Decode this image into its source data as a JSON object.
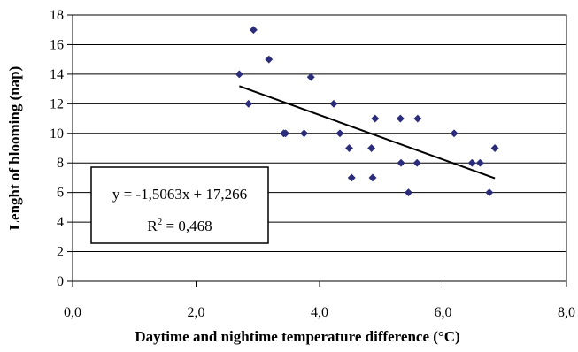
{
  "chart_data": {
    "type": "scatter",
    "xlabel": "Daytime and nightime temperature difference (°C)",
    "ylabel": "Lenght of blooming  (nap)",
    "xlim": [
      0,
      8
    ],
    "ylim": [
      0,
      18
    ],
    "x_ticks": [
      0,
      2,
      4,
      6,
      8
    ],
    "x_tick_labels": [
      "0,0",
      "2,0",
      "4,0",
      "6,0",
      "8,0"
    ],
    "y_ticks": [
      0,
      2,
      4,
      6,
      8,
      10,
      12,
      14,
      16,
      18
    ],
    "y_tick_labels": [
      "0",
      "2",
      "4",
      "6",
      "8",
      "10",
      "12",
      "14",
      "16",
      "18"
    ],
    "grid": "horizontal",
    "marker_color": "#2b2d7a",
    "points": [
      {
        "x": 2.7,
        "y": 14
      },
      {
        "x": 2.85,
        "y": 12
      },
      {
        "x": 2.93,
        "y": 17
      },
      {
        "x": 3.18,
        "y": 15
      },
      {
        "x": 3.42,
        "y": 10
      },
      {
        "x": 3.45,
        "y": 10
      },
      {
        "x": 3.75,
        "y": 10
      },
      {
        "x": 3.86,
        "y": 13.8
      },
      {
        "x": 4.23,
        "y": 12
      },
      {
        "x": 4.33,
        "y": 10
      },
      {
        "x": 4.48,
        "y": 9
      },
      {
        "x": 4.52,
        "y": 7
      },
      {
        "x": 4.84,
        "y": 9
      },
      {
        "x": 4.86,
        "y": 7
      },
      {
        "x": 4.9,
        "y": 11
      },
      {
        "x": 5.31,
        "y": 11
      },
      {
        "x": 5.32,
        "y": 8
      },
      {
        "x": 5.44,
        "y": 6
      },
      {
        "x": 5.59,
        "y": 11
      },
      {
        "x": 5.58,
        "y": 8
      },
      {
        "x": 6.18,
        "y": 10
      },
      {
        "x": 6.47,
        "y": 8
      },
      {
        "x": 6.6,
        "y": 8
      },
      {
        "x": 6.75,
        "y": 6
      },
      {
        "x": 6.84,
        "y": 9
      }
    ],
    "trendline": {
      "slope": -1.5063,
      "intercept": 17.266,
      "x_range": [
        2.7,
        6.84
      ],
      "equation_text": "y = -1,5063x + 17,266",
      "r2_text_prefix": "R",
      "r2_text_sup": "2",
      "r2_text_value": " = 0,468"
    }
  }
}
